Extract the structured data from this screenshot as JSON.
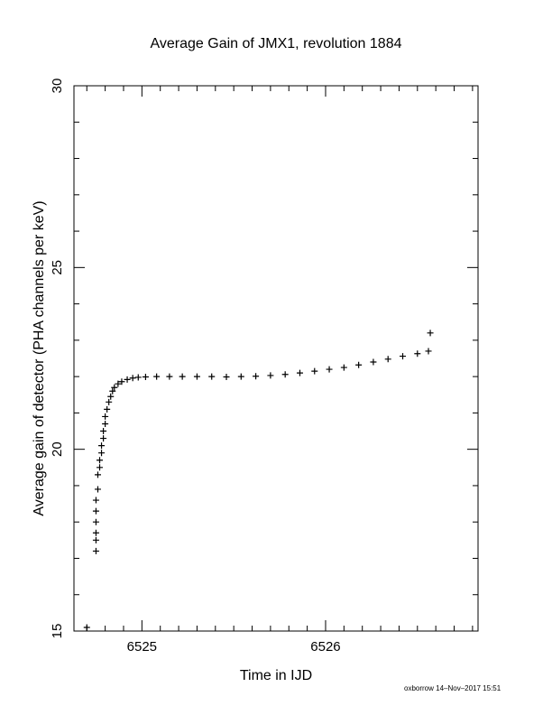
{
  "chart_data": {
    "type": "scatter",
    "title": "Average Gain of JMX1, revolution 1884",
    "xlabel": "Time in IJD",
    "ylabel": "Average gain of detector (PHA channels per keV)",
    "xlim": [
      6524.63,
      6526.83
    ],
    "ylim": [
      15,
      30
    ],
    "xticks": [
      6525,
      6526
    ],
    "yticks": [
      15,
      20,
      25,
      30
    ],
    "grid": false,
    "marker": "plus",
    "series": [
      {
        "points": [
          [
            6524.7,
            15.1
          ],
          [
            6524.75,
            17.2
          ],
          [
            6524.75,
            17.5
          ],
          [
            6524.75,
            17.7
          ],
          [
            6524.75,
            18.0
          ],
          [
            6524.75,
            18.3
          ],
          [
            6524.75,
            18.6
          ],
          [
            6524.76,
            18.9
          ],
          [
            6524.76,
            19.3
          ],
          [
            6524.77,
            19.5
          ],
          [
            6524.77,
            19.7
          ],
          [
            6524.78,
            19.9
          ],
          [
            6524.78,
            20.1
          ],
          [
            6524.79,
            20.3
          ],
          [
            6524.79,
            20.5
          ],
          [
            6524.8,
            20.7
          ],
          [
            6524.8,
            20.9
          ],
          [
            6524.81,
            21.1
          ],
          [
            6524.82,
            21.3
          ],
          [
            6524.83,
            21.45
          ],
          [
            6524.84,
            21.6
          ],
          [
            6524.85,
            21.7
          ],
          [
            6524.87,
            21.8
          ],
          [
            6524.89,
            21.86
          ],
          [
            6524.92,
            21.92
          ],
          [
            6524.95,
            21.96
          ],
          [
            6524.98,
            21.98
          ],
          [
            6525.02,
            21.99
          ],
          [
            6525.08,
            22.0
          ],
          [
            6525.15,
            22.0
          ],
          [
            6525.22,
            22.0
          ],
          [
            6525.3,
            22.0
          ],
          [
            6525.38,
            22.0
          ],
          [
            6525.46,
            21.99
          ],
          [
            6525.54,
            22.0
          ],
          [
            6525.62,
            22.01
          ],
          [
            6525.7,
            22.03
          ],
          [
            6525.78,
            22.06
          ],
          [
            6525.86,
            22.1
          ],
          [
            6525.94,
            22.15
          ],
          [
            6526.02,
            22.2
          ],
          [
            6526.1,
            22.25
          ],
          [
            6526.18,
            22.32
          ],
          [
            6526.26,
            22.4
          ],
          [
            6526.34,
            22.48
          ],
          [
            6526.42,
            22.56
          ],
          [
            6526.5,
            22.63
          ],
          [
            6526.56,
            22.7
          ],
          [
            6526.57,
            23.2
          ]
        ]
      }
    ]
  },
  "footer": "oxborrow 14–Nov–2017 15:51"
}
